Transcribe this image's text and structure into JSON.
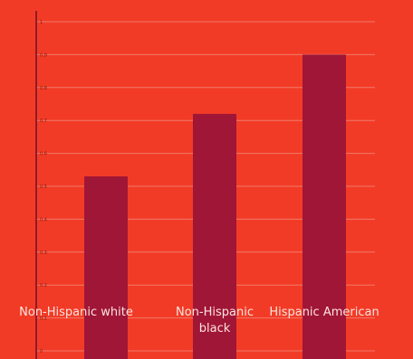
{
  "chart_data": {
    "type": "bar",
    "title": "",
    "xlabel": "",
    "ylabel": "",
    "ylim": [
      0,
      1
    ],
    "yticks": [
      "0",
      "0.1",
      "0.2",
      "0.3",
      "0.4",
      "0.5",
      "0.6",
      "0.7",
      "0.8",
      "0.9",
      "1"
    ],
    "categories": [
      {
        "label": [
          "Non-Hispanic white"
        ]
      },
      {
        "label": [
          "Non-Hispanic",
          "black"
        ]
      },
      {
        "label": [
          "Hispanic American"
        ]
      }
    ],
    "values": [
      0.53,
      0.72,
      0.9
    ],
    "grid": true,
    "legend": "none",
    "colors": {
      "background": "#f23b26",
      "bar": "#a01637",
      "grid": "#f07a6a",
      "axis": "#6b0f2a",
      "tick_text": "#7a1a12",
      "category_text": "#fbe4e0"
    }
  }
}
